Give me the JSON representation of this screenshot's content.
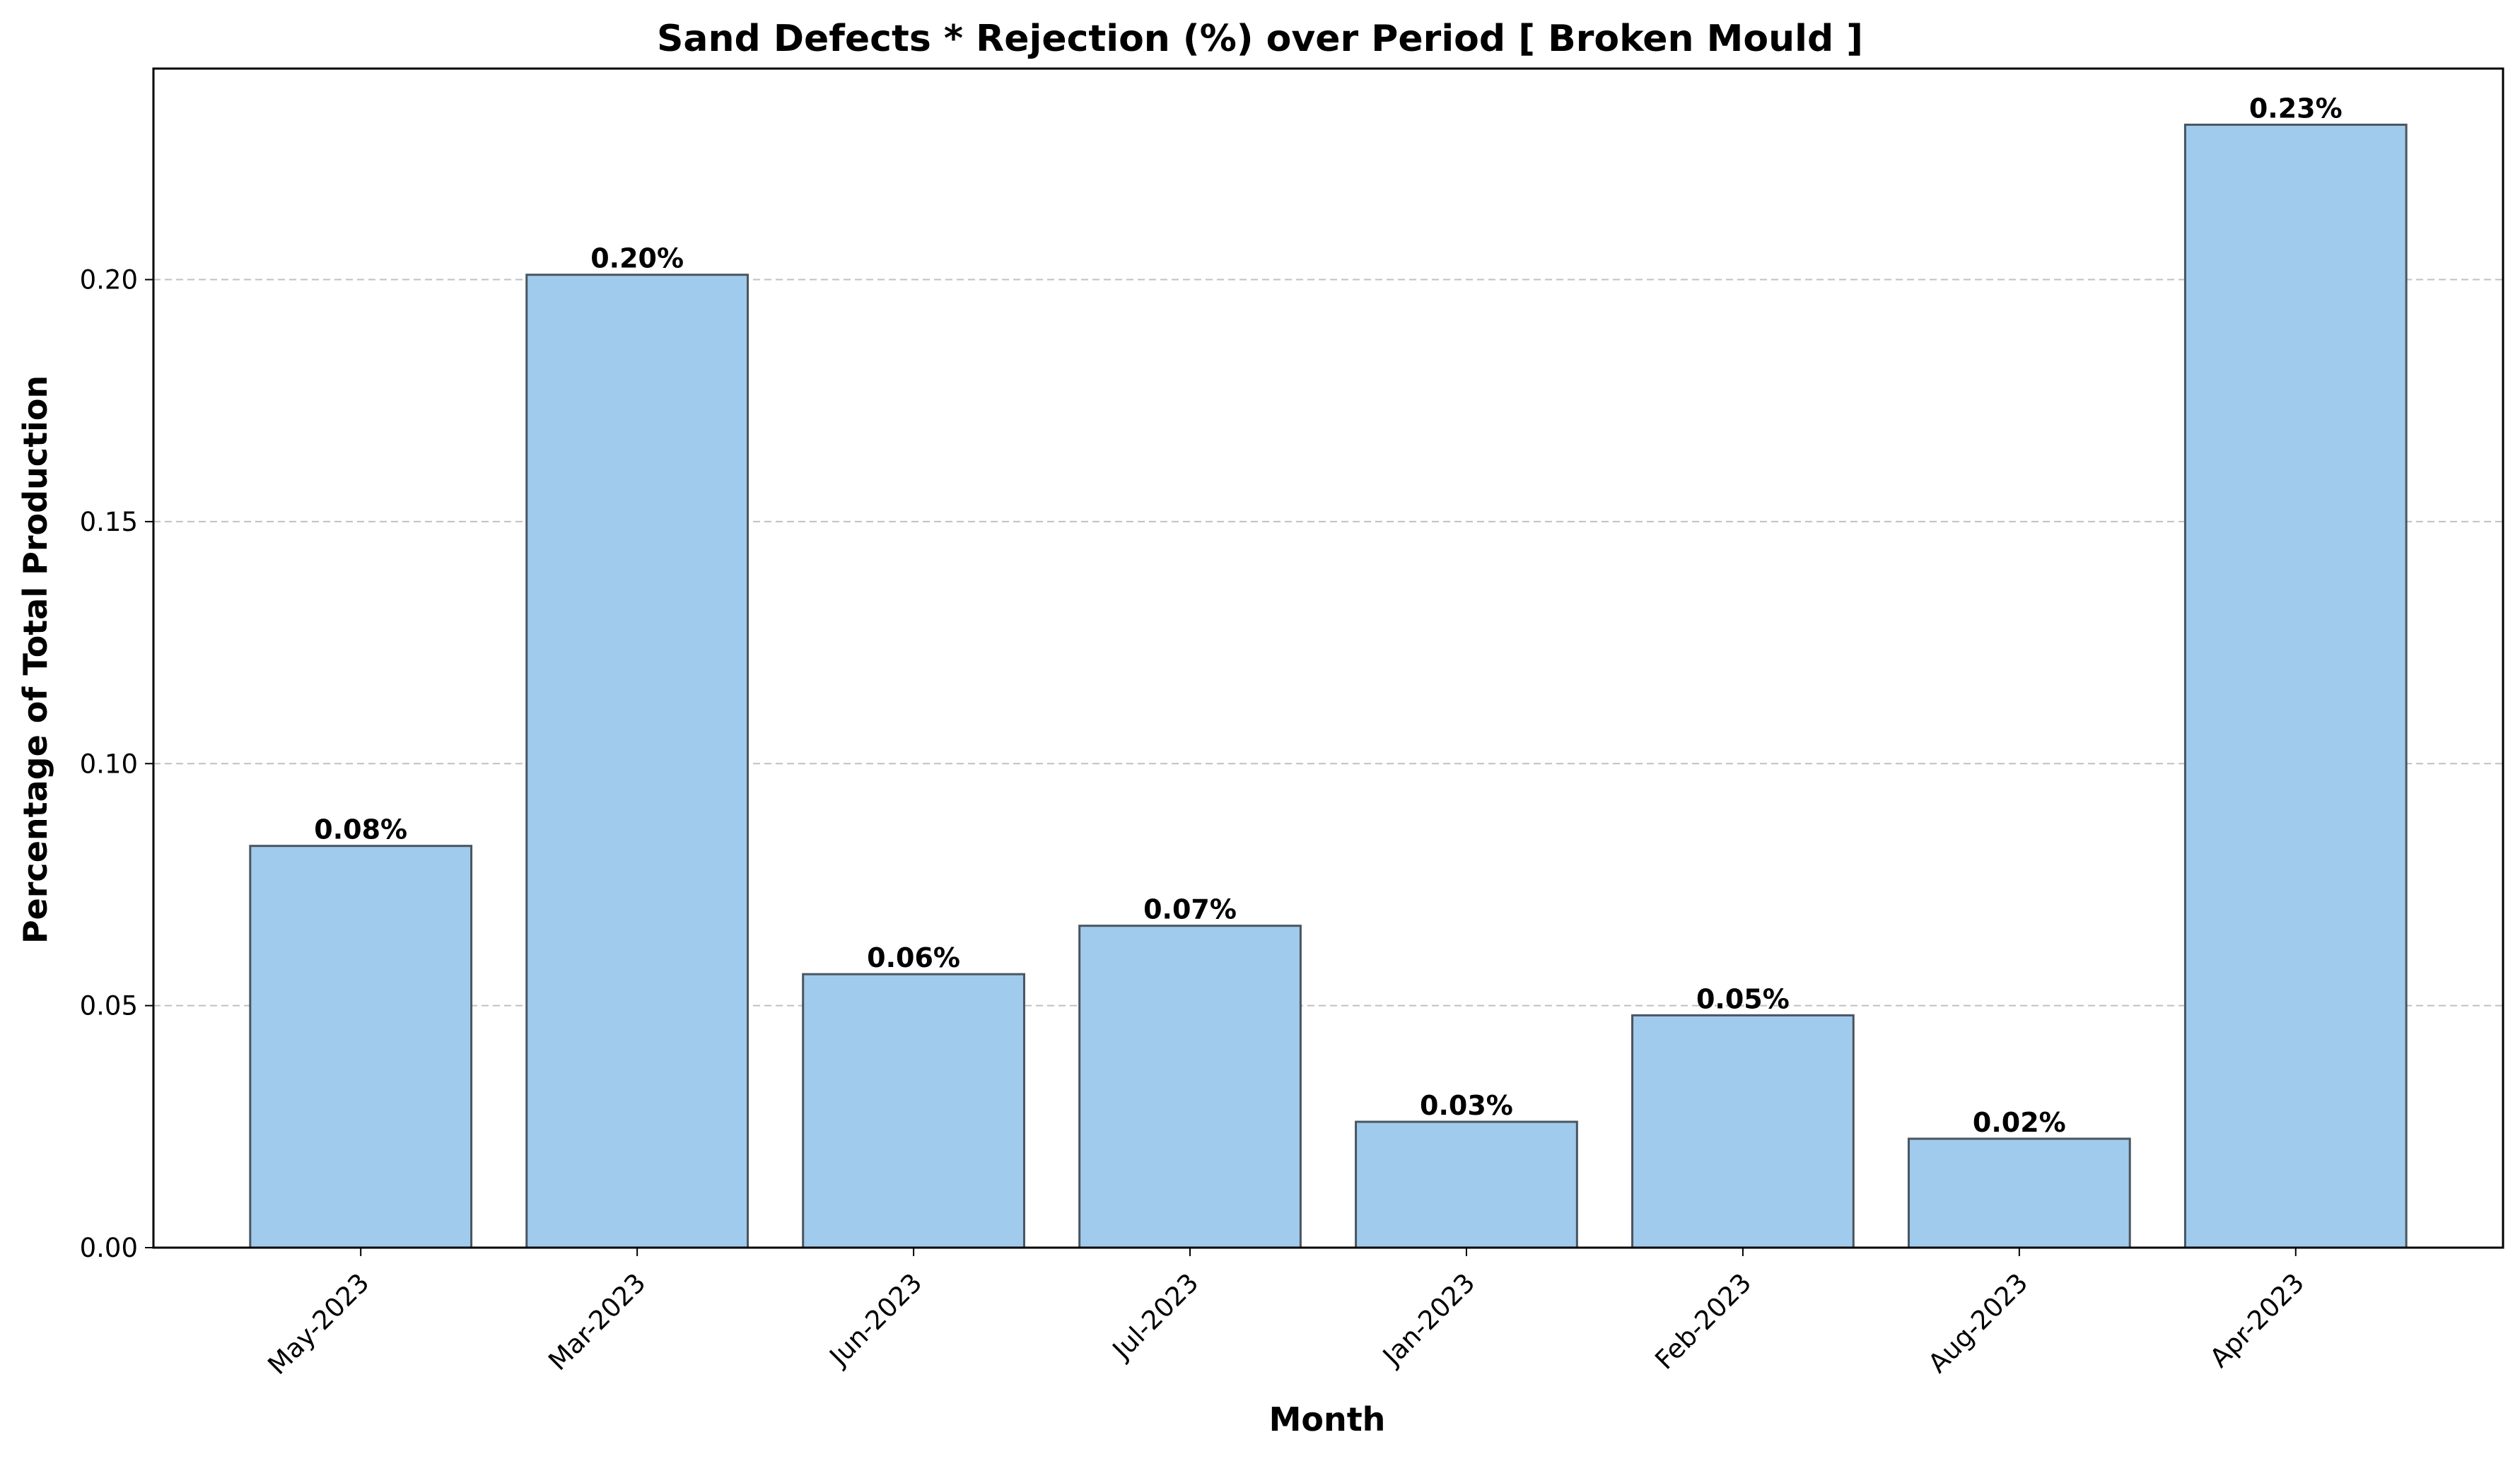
{
  "chart_data": {
    "type": "bar",
    "title": "Sand Defects * Rejection (%) over Period [ Broken Mould ]",
    "xlabel": "Month",
    "ylabel": "Percentage of Total Production",
    "categories": [
      "May-2023",
      "Mar-2023",
      "Jun-2023",
      "Jul-2023",
      "Jan-2023",
      "Feb-2023",
      "Aug-2023",
      "Apr-2023"
    ],
    "values": [
      0.083,
      0.201,
      0.0565,
      0.0665,
      0.026,
      0.048,
      0.0225,
      0.232
    ],
    "value_labels": [
      "0.08%",
      "0.20%",
      "0.06%",
      "0.07%",
      "0.03%",
      "0.05%",
      "0.02%",
      "0.23%"
    ],
    "ylim": [
      0,
      0.2436
    ],
    "yticks": [
      0.0,
      0.05,
      0.1,
      0.15,
      0.2
    ],
    "ytick_labels": [
      "0.00",
      "0.05",
      "0.10",
      "0.15",
      "0.20"
    ],
    "grid": "y-dashed",
    "legend": "none",
    "colors": {
      "bar_fill": "#a0cbec",
      "bar_edge": "#4a5560",
      "grid": "#c0c0c0",
      "axis": "#000000"
    }
  }
}
